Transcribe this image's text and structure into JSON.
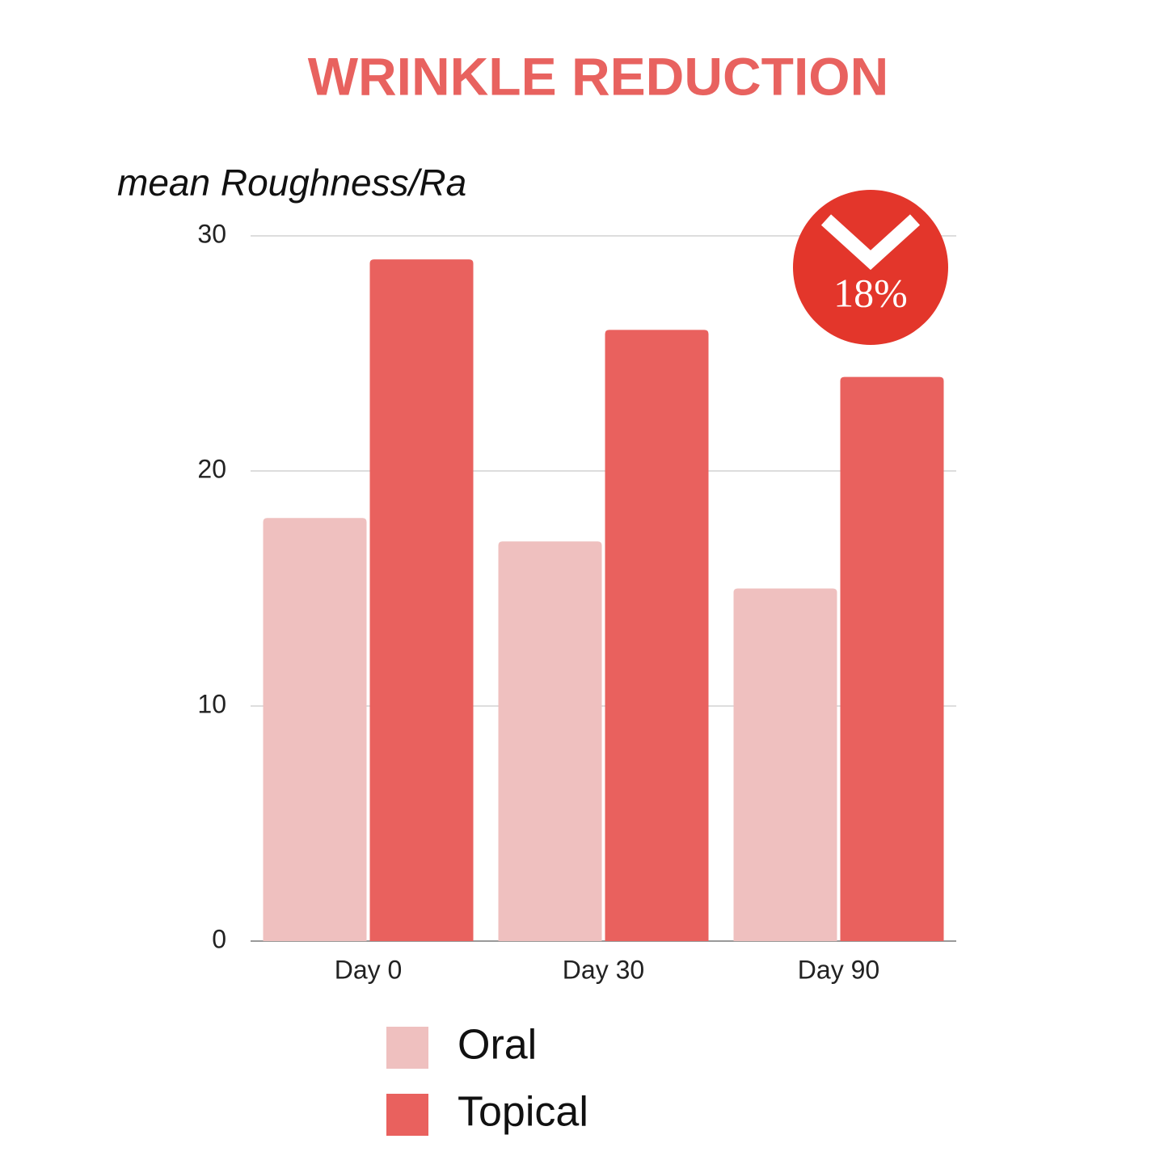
{
  "chart_data": {
    "type": "bar",
    "title": "WRINKLE REDUCTION",
    "y_label": "mean Roughness/Ra",
    "categories": [
      "Day 0",
      "Day 30",
      "Day 90"
    ],
    "series": [
      {
        "name": "Oral",
        "color": "#efc0bf",
        "values": [
          18,
          17,
          15
        ]
      },
      {
        "name": "Topical",
        "color": "#e9615e",
        "values": [
          29,
          26,
          24
        ]
      }
    ],
    "ylim": [
      0,
      30
    ],
    "yticks": [
      0,
      10,
      20,
      30
    ],
    "grid": true,
    "annotation": "18%",
    "annotation_color": "#e3362b",
    "title_color": "#e8625f"
  }
}
